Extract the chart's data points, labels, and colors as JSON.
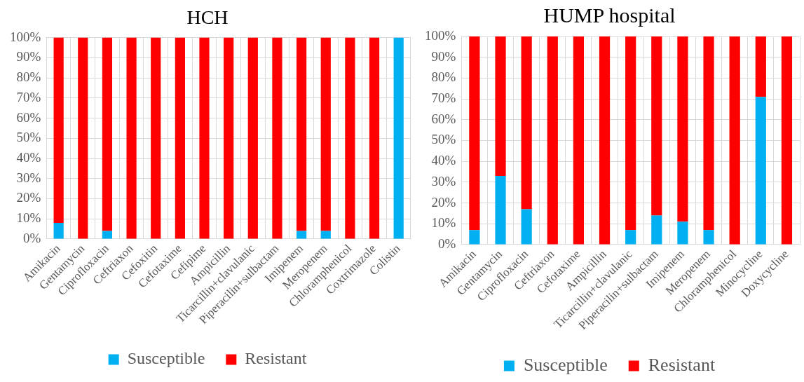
{
  "chart_data": [
    {
      "type": "bar",
      "title": "HCH",
      "stacked": true,
      "grid": true,
      "legend": "bottom",
      "categories": [
        "Amikacin",
        "Gentamycin",
        "Ciprofloxacin",
        "Ceftriaxon",
        "Cefoxitin",
        "Cefotaxime",
        "Cefipime",
        "Ampicillin",
        "Ticarcillin+clavulanic",
        "Piperacilin+sulbactam",
        "Imipenem",
        "Meropenem",
        "Chloramphenicol",
        "Coxtrimazole",
        "Colistin"
      ],
      "series": [
        {
          "name": "Susceptible",
          "color": "#00b0f0",
          "values": [
            8,
            0,
            4,
            0,
            0,
            0,
            0,
            0,
            0,
            0,
            4,
            4,
            0,
            0,
            100
          ]
        },
        {
          "name": "Resistant",
          "color": "#ff0000",
          "values": [
            92,
            100,
            96,
            100,
            100,
            100,
            100,
            100,
            100,
            100,
            96,
            96,
            100,
            100,
            0
          ]
        }
      ],
      "ylim": [
        0,
        100
      ],
      "yticks": [
        {
          "value": 0,
          "label": "0%"
        },
        {
          "value": 10,
          "label": "10%"
        },
        {
          "value": 20,
          "label": "20%"
        },
        {
          "value": 30,
          "label": "30%"
        },
        {
          "value": 40,
          "label": "40%"
        },
        {
          "value": 50,
          "label": "50%"
        },
        {
          "value": 60,
          "label": "60%"
        },
        {
          "value": 70,
          "label": "70%"
        },
        {
          "value": 80,
          "label": "80%"
        },
        {
          "value": 90,
          "label": "90%"
        },
        {
          "value": 100,
          "label": "100%"
        }
      ]
    },
    {
      "type": "bar",
      "title": "HUMP hospital",
      "stacked": true,
      "grid": true,
      "legend": "bottom",
      "categories": [
        "Amikacin",
        "Gentamycin",
        "Ciprofloxacin",
        "Ceftriaxon",
        "Cefotaxime",
        "Ampicillin",
        "Ticarcillin+clavulanic",
        "Piperacilin+sulbactam",
        "Imipenem",
        "Meropenem",
        "Chloramphenicol",
        "Minocycline",
        "Doxycycline"
      ],
      "series": [
        {
          "name": "Susceptible",
          "color": "#00b0f0",
          "values": [
            7,
            33,
            17,
            0,
            0,
            0,
            7,
            14,
            11,
            7,
            0,
            71,
            0
          ]
        },
        {
          "name": "Resistant",
          "color": "#ff0000",
          "values": [
            93,
            67,
            83,
            100,
            100,
            100,
            93,
            86,
            89,
            93,
            100,
            29,
            100
          ]
        }
      ],
      "ylim": [
        0,
        100
      ],
      "yticks": [
        {
          "value": 0,
          "label": "0%"
        },
        {
          "value": 10,
          "label": "10%"
        },
        {
          "value": 20,
          "label": "20%"
        },
        {
          "value": 30,
          "label": "30%"
        },
        {
          "value": 40,
          "label": "40%"
        },
        {
          "value": 50,
          "label": "50%"
        },
        {
          "value": 60,
          "label": "60%"
        },
        {
          "value": 70,
          "label": "70%"
        },
        {
          "value": 80,
          "label": "80%"
        },
        {
          "value": 90,
          "label": "90%"
        },
        {
          "value": 100,
          "label": "100%"
        }
      ]
    }
  ]
}
